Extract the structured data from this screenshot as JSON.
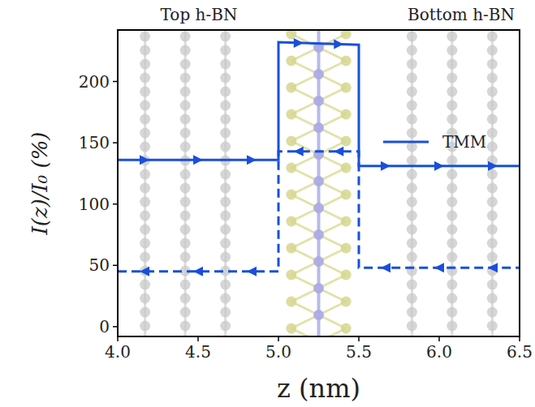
{
  "chart_data": {
    "type": "line",
    "xlabel": "z (nm)",
    "ylabel": "I(z)/I₀ (%)",
    "annotations": [
      "Top h-BN",
      "Bottom h-BN"
    ],
    "xlim": [
      4.0,
      6.5
    ],
    "ylim": [
      -8,
      242
    ],
    "xticks": [
      {
        "value": 4,
        "label": "4.0"
      },
      {
        "value": 4.5,
        "label": "4.5"
      },
      {
        "value": 5,
        "label": "5.0"
      },
      {
        "value": 5.5,
        "label": "5.5"
      },
      {
        "value": 6,
        "label": "6.0"
      },
      {
        "value": 6.5,
        "label": "6.5"
      }
    ],
    "yticks": [
      0,
      50,
      100,
      150,
      200
    ],
    "grid": false,
    "legend": "center right",
    "series": [
      {
        "name": "TMM",
        "color": "#1a4fdc",
        "line_style": "solid",
        "marker": "arrow-right",
        "x": [
          4.0,
          5.0,
          5.0,
          5.5,
          5.5,
          6.5
        ],
        "values": [
          136,
          136,
          232,
          230,
          131,
          131
        ]
      },
      {
        "color": "#1a4fdc",
        "line_style": "dashed",
        "marker": "arrow-left",
        "x": [
          4.0,
          5.0,
          5.0,
          5.5,
          5.5,
          6.5
        ],
        "values": [
          45,
          45,
          143,
          143,
          48,
          48
        ]
      }
    ]
  }
}
